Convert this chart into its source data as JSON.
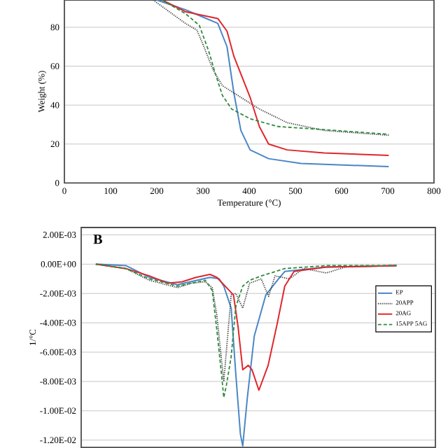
{
  "chart_data": [
    {
      "type": "line",
      "xlabel": "Temperature (°C)",
      "ylabel": "Weight (%)",
      "xlim": [
        0,
        800
      ],
      "ylim": [
        0,
        94
      ],
      "xticks": [
        0,
        100,
        200,
        300,
        400,
        500,
        600,
        700,
        800
      ],
      "yticks": [
        0,
        20,
        40,
        60,
        80
      ],
      "grid": "y",
      "series": [
        {
          "color": "#4a86c5",
          "line_style": "solid",
          "x": [
            200,
            262,
            302,
            332,
            352,
            367,
            382,
            402,
            442,
            512,
            702
          ],
          "values": [
            94,
            89,
            85,
            82,
            70,
            46,
            27,
            17,
            12.5,
            10,
            8.4
          ]
        },
        {
          "color": "#333333",
          "line_style": "dotted",
          "x": [
            192,
            262,
            287,
            302,
            322,
            342,
            382,
            422,
            482,
            562,
            702
          ],
          "values": [
            94,
            82,
            78.5,
            70,
            58,
            50,
            44,
            38,
            31,
            27,
            24.5
          ]
        },
        {
          "color": "#e0262b",
          "line_style": "solid",
          "x": [
            212,
            262,
            332,
            352,
            367,
            382,
            402,
            422,
            442,
            482,
            562,
            702
          ],
          "values": [
            94,
            88,
            84.5,
            78,
            65,
            56,
            44,
            29,
            20,
            17,
            15.4,
            14.2
          ]
        },
        {
          "color": "#2e8b3e",
          "line_style": "dashed",
          "x": [
            212,
            262,
            292,
            312,
            327,
            342,
            362,
            402,
            462,
            562,
            702
          ],
          "values": [
            94,
            87,
            81,
            68,
            56,
            45,
            38,
            33,
            29,
            27.4,
            25
          ]
        }
      ]
    },
    {
      "type": "line",
      "ylabel": "1/°C",
      "annotations": [
        "B"
      ],
      "xlim": [
        0,
        800
      ],
      "ylim": [
        -0.0125,
        0.0025
      ],
      "tick_labels": "y",
      "grid": "y",
      "legend": "right",
      "yticks": [
        {
          "value": 0.002,
          "label": "2.00E-03"
        },
        {
          "value": 0,
          "label": "0.00E+00"
        },
        {
          "value": -0.002,
          "label": "-2.00E-03"
        },
        {
          "value": -0.004,
          "label": "-4.00E-03"
        },
        {
          "value": -0.006,
          "label": "-6.00E-03"
        },
        {
          "value": -0.008,
          "label": "-8.00E-03"
        },
        {
          "value": -0.01,
          "label": "-1.00E-02"
        },
        {
          "value": -0.012,
          "label": "-1.20E-02"
        }
      ],
      "series": [
        {
          "name": "EP",
          "color": "#4a86c5",
          "line_style": "solid",
          "x": [
            68,
            133,
            184,
            245,
            315,
            335,
            345,
            361,
            371,
            381,
            386,
            396,
            411,
            436,
            461,
            477,
            567,
            719
          ],
          "values": [
            0,
            -0.0001,
            -0.0009,
            -0.0014,
            -0.0009,
            -0.001,
            -0.0015,
            -0.003,
            -0.0075,
            -0.0116,
            -0.0124,
            -0.0091,
            -0.0049,
            -0.0021,
            -0.0011,
            -0.0005,
            -0.0002,
            -0.0001
          ]
        },
        {
          "name": "20APP",
          "color": "#333333",
          "line_style": "dotted",
          "x": [
            68,
            133,
            184,
            245,
            275,
            305,
            320,
            330,
            340,
            345,
            355,
            361,
            371,
            386,
            401,
            426,
            442,
            456,
            487,
            518,
            567,
            608,
            719
          ],
          "values": [
            0,
            -0.0003,
            -0.0011,
            -0.0016,
            -0.0013,
            -0.0012,
            -0.0016,
            -0.0035,
            -0.0065,
            -0.008,
            -0.0043,
            -0.0021,
            -0.002,
            -0.003,
            -0.0013,
            -0.001,
            -0.0022,
            -0.0008,
            -0.001,
            -0.0003,
            -0.0006,
            -0.0002,
            -0.0001
          ]
        },
        {
          "name": "20AG",
          "color": "#e0262b",
          "line_style": "solid",
          "x": [
            68,
            133,
            184,
            224,
            255,
            285,
            315,
            330,
            366,
            376,
            386,
            398,
            406,
            421,
            441,
            461,
            477,
            497,
            567,
            719
          ],
          "values": [
            0,
            -0.0003,
            -0.0008,
            -0.0013,
            -0.0012,
            -0.0009,
            -0.0007,
            -0.0009,
            -0.0021,
            -0.0043,
            -0.0072,
            -0.0069,
            -0.0072,
            -0.0086,
            -0.0069,
            -0.004,
            -0.0015,
            -0.0005,
            -0.0002,
            -0.0001
          ]
        },
        {
          "name": "15APP 5AG",
          "color": "#2e8b3e",
          "line_style": "dashed",
          "x": [
            68,
            133,
            184,
            245,
            305,
            320,
            330,
            340,
            345,
            351,
            361,
            371,
            386,
            401,
            426,
            447,
            477,
            567,
            719
          ],
          "values": [
            0,
            -0.0003,
            -0.001,
            -0.0015,
            -0.0011,
            -0.0018,
            -0.0045,
            -0.0075,
            -0.0091,
            -0.0082,
            -0.0063,
            -0.0029,
            -0.0015,
            -0.0011,
            -0.0008,
            -0.0006,
            -0.0003,
            -0.0001,
            -0.0001
          ]
        }
      ]
    }
  ]
}
